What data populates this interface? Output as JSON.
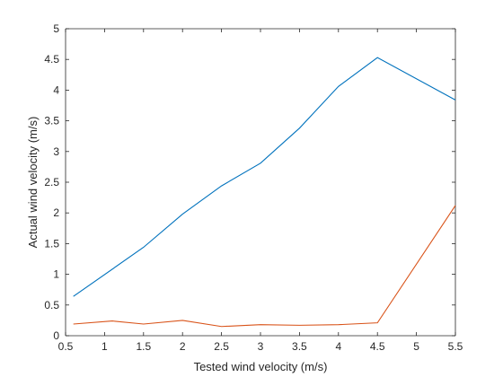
{
  "chart_data": {
    "type": "line",
    "xlabel": "Tested wind velocity (m/s)",
    "ylabel": "Actual wind velocity (m/s)",
    "xlim": [
      0.5,
      5.5
    ],
    "ylim": [
      0,
      5
    ],
    "grid": false,
    "x_ticks": [
      0.5,
      1,
      1.5,
      2,
      2.5,
      3,
      3.5,
      4,
      4.5,
      5,
      5.5
    ],
    "x_tick_labels": [
      "0.5",
      "1",
      "1.5",
      "2",
      "2.5",
      "3",
      "3.5",
      "4",
      "4.5",
      "5",
      "5.5"
    ],
    "y_ticks": [
      0,
      0.5,
      1,
      1.5,
      2,
      2.5,
      3,
      3.5,
      4,
      4.5,
      5
    ],
    "y_tick_labels": [
      "0",
      "0.5",
      "1",
      "1.5",
      "2",
      "2.5",
      "3",
      "3.5",
      "4",
      "4.5",
      "5"
    ],
    "series": [
      {
        "color": "#0072BD",
        "x": [
          0.6,
          1.5,
          2.0,
          2.5,
          3.0,
          3.5,
          4.0,
          4.5,
          5.5
        ],
        "y": [
          0.64,
          1.44,
          1.98,
          2.44,
          2.81,
          3.38,
          4.06,
          4.53,
          3.84
        ]
      },
      {
        "color": "#D95319",
        "x": [
          0.6,
          1.1,
          1.5,
          2.0,
          2.5,
          3.0,
          3.5,
          4.0,
          4.5,
          5.5
        ],
        "y": [
          0.19,
          0.24,
          0.19,
          0.25,
          0.15,
          0.18,
          0.17,
          0.18,
          0.21,
          2.12
        ]
      }
    ]
  }
}
